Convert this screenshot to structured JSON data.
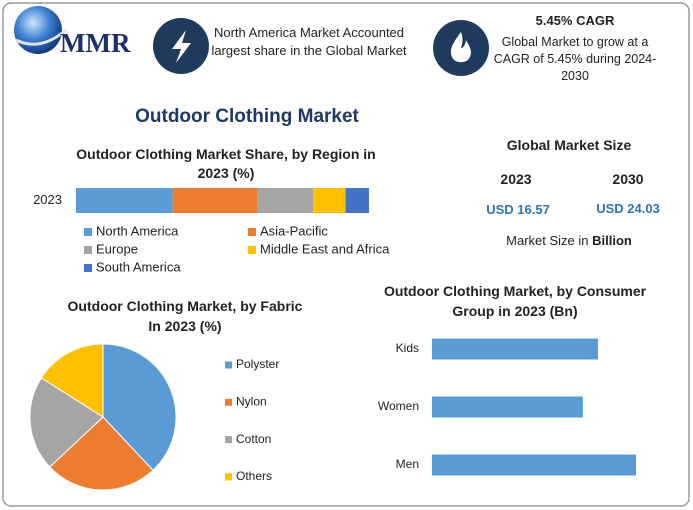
{
  "header": {
    "logo": "MMR",
    "highlight": "North America Market Accounted largest share in the Global Market",
    "cagr_title": "5.45% CAGR",
    "cagr_text": "Global Market to grow at a CAGR of 5.45% during 2024-2030"
  },
  "title": "Outdoor Clothing Market",
  "market_size": {
    "title": "Global Market Size",
    "years": [
      "2023",
      "2030"
    ],
    "values": [
      "USD 16.57",
      "USD 24.03"
    ],
    "note": "Market Size in",
    "unit": "Billion"
  },
  "chart_data": [
    {
      "type": "stacked_bar",
      "title": "Outdoor Clothing Market Share, by Region in 2023 (%)",
      "categories": [
        "2023"
      ],
      "series": [
        {
          "name": "North America",
          "color": "#5b9bd5",
          "values": [
            33
          ]
        },
        {
          "name": "Asia-Pacific",
          "color": "#ed7d31",
          "values": [
            29
          ]
        },
        {
          "name": "Europe",
          "color": "#a5a5a5",
          "values": [
            19
          ]
        },
        {
          "name": "Middle East and Africa",
          "color": "#ffc000",
          "values": [
            11
          ]
        },
        {
          "name": "South America",
          "color": "#4472c4",
          "values": [
            8
          ]
        }
      ]
    },
    {
      "type": "pie",
      "title": "Outdoor Clothing Market, by Fabric In 2023 (%)",
      "categories": [
        "Polyster",
        "Nylon",
        "Cotton",
        "Others"
      ],
      "values": [
        38,
        25,
        21,
        16
      ],
      "colors": [
        "#5b9bd5",
        "#ed7d31",
        "#a5a5a5",
        "#ffc000"
      ]
    },
    {
      "type": "bar",
      "orientation": "horizontal",
      "title": "Outdoor Clothing Market, by Consumer Group in 2023 (Bn)",
      "categories": [
        "Kids",
        "Women",
        "Men"
      ],
      "values": [
        5.28,
        4.8,
        6.49
      ],
      "color": "#5b9bd5"
    }
  ]
}
